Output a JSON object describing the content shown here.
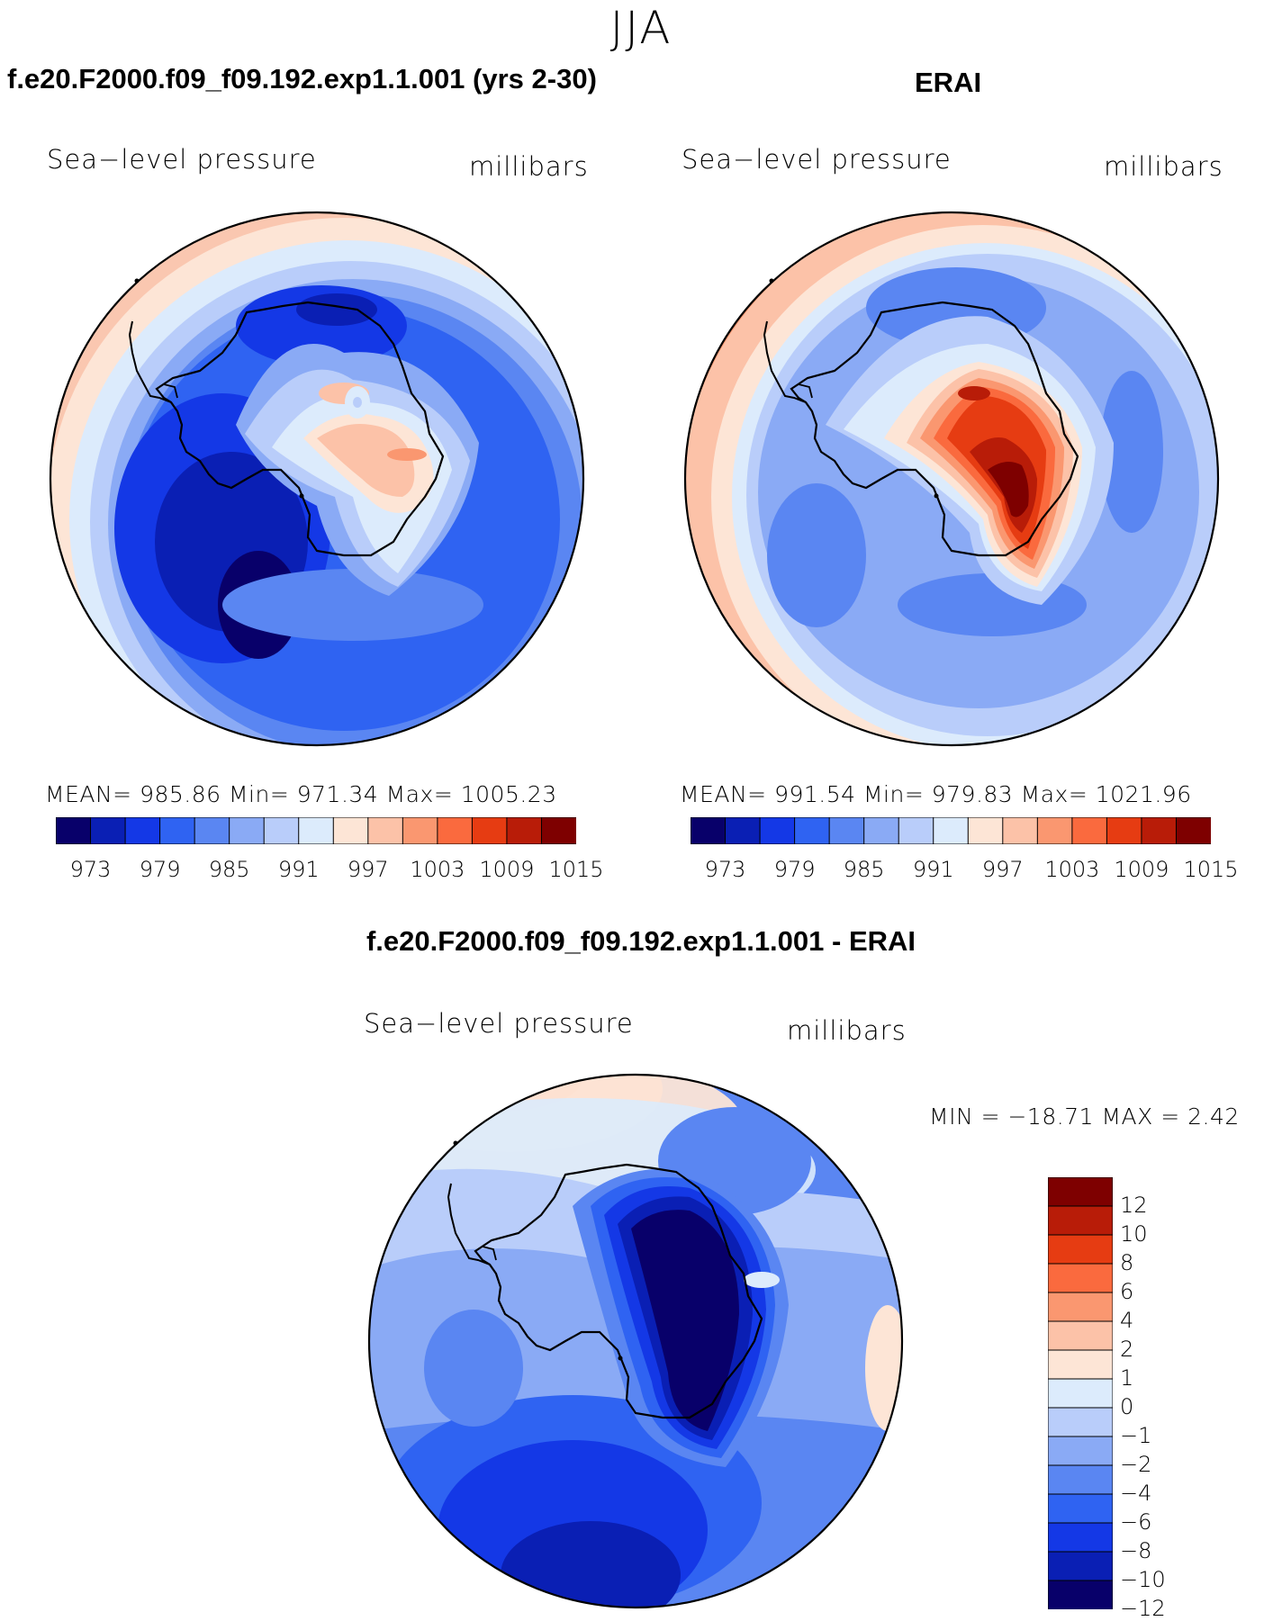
{
  "figure": {
    "season": "JJA",
    "projection": "south polar stereographic",
    "field": "Sea-level pressure",
    "units": "millibars"
  },
  "panels": {
    "model": {
      "title": "f.e20.F2000.f09_f09.192.exp1.1.001 (yrs 2-30)",
      "field_label": "Sea−level pressure",
      "units_label": "millibars",
      "stats_text": "MEAN= 985.86   Min= 971.34   Max= 1005.23"
    },
    "obs": {
      "title": "ERAI",
      "field_label": "Sea−level pressure",
      "units_label": "millibars",
      "stats_text": "MEAN= 991.54   Min= 979.83   Max= 1021.96"
    },
    "diff": {
      "title": "f.e20.F2000.f09_f09.192.exp1.1.001 - ERAI",
      "field_label": "Sea−level pressure",
      "units_label": "millibars",
      "stats_text": "MIN  =  −18.71  MAX  =      2.42"
    }
  },
  "colorbars": {
    "absolute": {
      "colors": [
        "#08006a",
        "#0a1fb4",
        "#1438e6",
        "#2f63f2",
        "#5a86f2",
        "#8aaaf5",
        "#b9cdfa",
        "#dcebfc",
        "#fde5d6",
        "#fcc2a8",
        "#fa9770",
        "#fa6a3e",
        "#e63c12",
        "#b81c08",
        "#7e0000"
      ],
      "labels": [
        "973",
        "979",
        "985",
        "991",
        "997",
        "1003",
        "1009",
        "1015"
      ]
    },
    "difference": {
      "colors": [
        "#7e0000",
        "#b81c08",
        "#e63c12",
        "#fa6a3e",
        "#fa9770",
        "#fcc2a8",
        "#fde5d6",
        "#dcebfc",
        "#b9cdfa",
        "#8aaaf5",
        "#5a86f2",
        "#2f63f2",
        "#1438e6",
        "#0a1fb4",
        "#08006a"
      ],
      "labels": [
        "12",
        "10",
        "8",
        "6",
        "4",
        "2",
        "1",
        "0",
        "−1",
        "−2",
        "−4",
        "−6",
        "−8",
        "−10",
        "−12"
      ]
    }
  },
  "chart_data": [
    {
      "type": "heatmap",
      "title": "f.e20.F2000.f09_f09.192.exp1.1.001 (yrs 2-30)",
      "variable": "Sea-level pressure",
      "units": "millibars",
      "mean": 985.86,
      "min": 971.34,
      "max": 1005.23,
      "levels": [
        973,
        976,
        979,
        982,
        985,
        988,
        991,
        994,
        997,
        1000,
        1003,
        1006,
        1009,
        1012,
        1015
      ]
    },
    {
      "type": "heatmap",
      "title": "ERAI",
      "variable": "Sea-level pressure",
      "units": "millibars",
      "mean": 991.54,
      "min": 979.83,
      "max": 1021.96,
      "levels": [
        973,
        976,
        979,
        982,
        985,
        988,
        991,
        994,
        997,
        1000,
        1003,
        1006,
        1009,
        1012,
        1015
      ]
    },
    {
      "type": "heatmap",
      "title": "f.e20.F2000.f09_f09.192.exp1.1.001 - ERAI",
      "variable": "Sea-level pressure",
      "units": "millibars",
      "min": -18.71,
      "max": 2.42,
      "levels": [
        -12,
        -10,
        -8,
        -6,
        -4,
        -2,
        -1,
        0,
        1,
        2,
        4,
        6,
        8,
        10,
        12
      ]
    }
  ]
}
